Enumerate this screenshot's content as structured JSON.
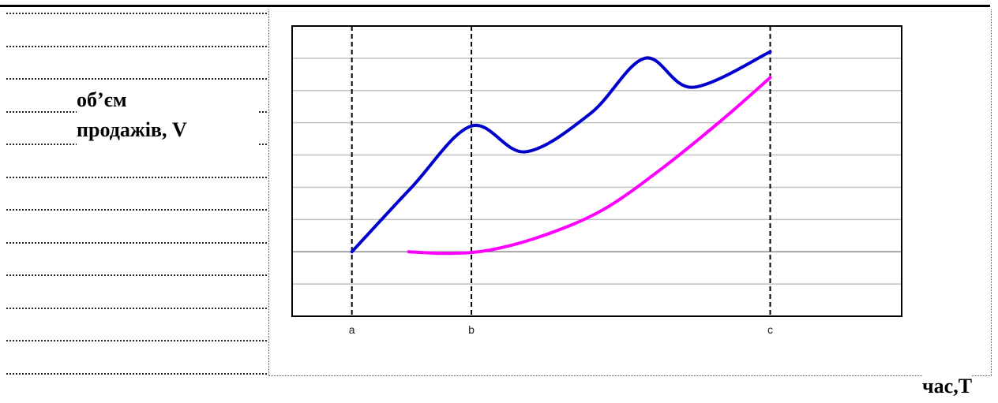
{
  "chart_data": {
    "type": "line",
    "ylabel_lines": [
      "об’єм",
      "продажів, V"
    ],
    "xlabel": "час,Т",
    "x_ticks": [
      {
        "label": "a",
        "x": 0
      },
      {
        "label": "b",
        "x": 2
      },
      {
        "label": "c",
        "x": 7
      }
    ],
    "xlim": [
      -1,
      9.2
    ],
    "ylim": [
      0,
      9
    ],
    "grid": "horizontal",
    "series": [
      {
        "color": "#0000cc",
        "x": [
          0,
          1,
          2,
          2.9,
          4,
          4.9,
          5.7,
          7
        ],
        "y": [
          2,
          4,
          5.9,
          5.1,
          6.3,
          8,
          7.1,
          8.2
        ]
      },
      {
        "color": "#ff00ff",
        "x": [
          0.95,
          1.6,
          2.3,
          3.2,
          4.2,
          5.2,
          6.2,
          7
        ],
        "y": [
          2,
          1.95,
          2.05,
          2.5,
          3.3,
          4.6,
          6.1,
          7.4
        ]
      }
    ]
  }
}
